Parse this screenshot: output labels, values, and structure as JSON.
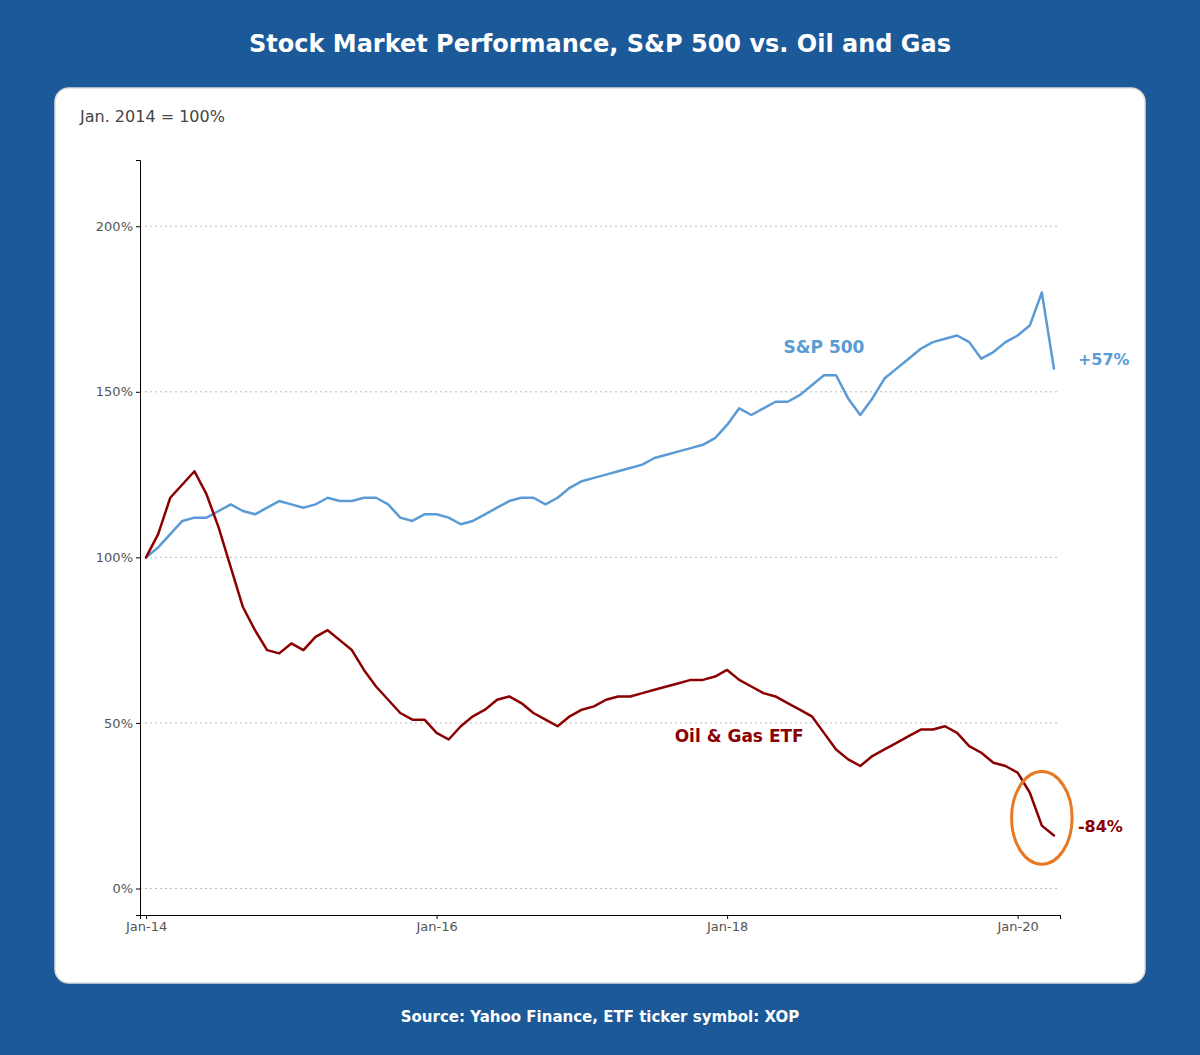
{
  "chart_data": {
    "type": "line",
    "title": "Stock Market Performance, S&P 500 vs. Oil and Gas",
    "subtitle": "Jan. 2014 = 100%",
    "source": "Source: Yahoo Finance, ETF ticker symbol: XOP",
    "background": "#1C5998",
    "categories": [
      "Jan-14",
      null,
      null,
      null,
      null,
      null,
      null,
      null,
      null,
      null,
      null,
      null,
      null,
      null,
      null,
      null,
      null,
      null,
      null,
      null,
      null,
      null,
      null,
      null,
      "Jan-16",
      null,
      null,
      null,
      null,
      null,
      null,
      null,
      null,
      null,
      null,
      null,
      null,
      null,
      null,
      null,
      null,
      null,
      null,
      null,
      null,
      null,
      null,
      null,
      "Jan-18",
      null,
      null,
      null,
      null,
      null,
      null,
      null,
      null,
      null,
      null,
      null,
      null,
      null,
      null,
      null,
      null,
      null,
      null,
      null,
      null,
      null,
      null,
      null,
      "Jan-20",
      null,
      null,
      null
    ],
    "ylim": [
      -8,
      220
    ],
    "yticks": [
      {
        "value": 0,
        "label": "0%"
      },
      {
        "value": 50,
        "label": "50%"
      },
      {
        "value": 100,
        "label": "100%"
      },
      {
        "value": 150,
        "label": "150%"
      },
      {
        "value": 200,
        "label": "200%"
      }
    ],
    "grid": true,
    "series": [
      {
        "name": "S&P 500",
        "color": "#5B9BD5",
        "end_label": "+57%",
        "values": [
          100,
          103,
          107,
          111,
          112,
          112,
          114,
          116,
          114,
          113,
          115,
          117,
          116,
          115,
          116,
          118,
          117,
          117,
          118,
          118,
          116,
          112,
          111,
          113,
          113,
          112,
          110,
          111,
          113,
          115,
          117,
          118,
          118,
          116,
          118,
          121,
          123,
          124,
          125,
          126,
          127,
          128,
          130,
          131,
          132,
          133,
          134,
          136,
          140,
          145,
          143,
          145,
          147,
          147,
          149,
          152,
          155,
          155,
          148,
          143,
          148,
          154,
          157,
          160,
          163,
          165,
          166,
          167,
          165,
          160,
          162,
          165,
          167,
          170,
          180,
          157
        ]
      },
      {
        "name": "Oil & Gas ETF",
        "color": "#8B0000",
        "end_label": "-84%",
        "highlight_color": "#E87722",
        "values": [
          100,
          107,
          118,
          122,
          126,
          119,
          109,
          97,
          85,
          78,
          72,
          71,
          74,
          72,
          76,
          78,
          75,
          72,
          66,
          61,
          57,
          53,
          51,
          51,
          47,
          45,
          49,
          52,
          54,
          57,
          58,
          56,
          53,
          51,
          49,
          52,
          54,
          55,
          57,
          58,
          58,
          59,
          60,
          61,
          62,
          63,
          63,
          64,
          66,
          63,
          61,
          59,
          58,
          56,
          54,
          52,
          47,
          42,
          39,
          37,
          40,
          42,
          44,
          46,
          48,
          48,
          49,
          47,
          43,
          41,
          38,
          37,
          35,
          29,
          19,
          16
        ]
      }
    ]
  }
}
